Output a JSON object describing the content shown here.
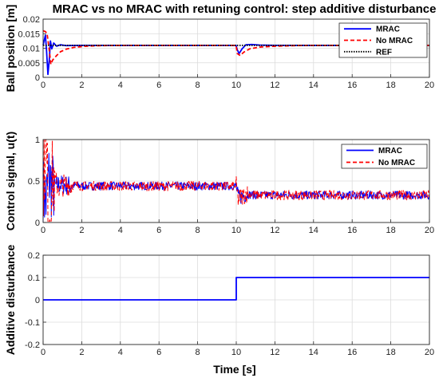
{
  "chart_data": [
    {
      "type": "line",
      "title": "MRAC vs no MRAC with retuning control: step additive disturbance",
      "xlabel": "",
      "ylabel": "Ball position [m]",
      "xlim": [
        0,
        20
      ],
      "ylim": [
        0,
        0.02
      ],
      "xticks": [
        "0",
        "2",
        "4",
        "6",
        "8",
        "10",
        "12",
        "14",
        "16",
        "18",
        "20"
      ],
      "yticks": [
        "0",
        "0.005",
        "0.01",
        "0.015",
        "0.02"
      ],
      "grid": true,
      "legend": "top-right",
      "series": [
        {
          "name": "MRAC",
          "color": "#0000ff",
          "style": "solid",
          "x": [
            0,
            0.12,
            0.18,
            0.25,
            0.32,
            0.38,
            0.45,
            0.55,
            0.7,
            0.9,
            1.2,
            2,
            4,
            6,
            8,
            9.99,
            10.05,
            10.15,
            10.3,
            10.5,
            10.8,
            11.2,
            12,
            14,
            16,
            18,
            20
          ],
          "y": [
            0.011,
            0.0145,
            0.009,
            0.001,
            0.006,
            0.0125,
            0.0098,
            0.0118,
            0.0107,
            0.0112,
            0.0109,
            0.011,
            0.011,
            0.011,
            0.011,
            0.011,
            0.0095,
            0.0082,
            0.0098,
            0.0112,
            0.0113,
            0.0111,
            0.011,
            0.011,
            0.011,
            0.011,
            0.011
          ]
        },
        {
          "name": "No MRAC",
          "color": "#ff0000",
          "style": "dashed",
          "x": [
            0,
            0.1,
            0.2,
            0.3,
            0.4,
            0.5,
            0.7,
            0.9,
            1.2,
            1.6,
            2.2,
            3,
            4,
            6,
            8,
            9.99,
            10.05,
            10.2,
            10.4,
            10.7,
            11.2,
            12,
            13,
            14,
            16,
            18,
            20
          ],
          "y": [
            0.016,
            0.0158,
            0.0152,
            0.0105,
            0.0045,
            0.006,
            0.0075,
            0.0088,
            0.0097,
            0.0103,
            0.0107,
            0.0109,
            0.011,
            0.011,
            0.011,
            0.011,
            0.0082,
            0.0075,
            0.0087,
            0.0098,
            0.0104,
            0.0107,
            0.0109,
            0.011,
            0.011,
            0.011,
            0.011
          ]
        },
        {
          "name": "REF",
          "color": "#000000",
          "style": "dotted",
          "x": [
            0,
            20
          ],
          "y": [
            0.011,
            0.011
          ]
        }
      ]
    },
    {
      "type": "line",
      "title": "",
      "xlabel": "",
      "ylabel": "Control signal, u(t)",
      "xlim": [
        0,
        20
      ],
      "ylim": [
        0,
        1
      ],
      "xticks": [
        "0",
        "2",
        "4",
        "6",
        "8",
        "10",
        "12",
        "14",
        "16",
        "18",
        "20"
      ],
      "yticks": [
        "0",
        "0.5",
        "1"
      ],
      "grid": true,
      "legend": "top-right",
      "series": [
        {
          "name": "MRAC",
          "color": "#0000ff",
          "style": "solid",
          "x": [
            0,
            0.15,
            0.3,
            0.5,
            0.8,
            1.2,
            2,
            10,
            10.1,
            10.5,
            11,
            20
          ],
          "y": [
            0.4,
            0.25,
            0.55,
            0.42,
            0.46,
            0.45,
            0.44,
            0.44,
            0.3,
            0.34,
            0.33,
            0.33
          ]
        },
        {
          "name": "No MRAC",
          "color": "#ff0000",
          "style": "dashed",
          "x": [
            0,
            0.15,
            0.3,
            0.5,
            0.8,
            1.2,
            2,
            10,
            10.1,
            10.5,
            11,
            20
          ],
          "y": [
            0.5,
            0.9,
            0.1,
            0.55,
            0.42,
            0.46,
            0.44,
            0.44,
            0.28,
            0.35,
            0.33,
            0.33
          ]
        }
      ]
    },
    {
      "type": "line",
      "title": "",
      "xlabel": "Time [s]",
      "ylabel": "Additive disturbance",
      "xlim": [
        0,
        20
      ],
      "ylim": [
        -0.2,
        0.2
      ],
      "xticks": [
        "0",
        "2",
        "4",
        "6",
        "8",
        "10",
        "12",
        "14",
        "16",
        "18",
        "20"
      ],
      "yticks": [
        "-0.2",
        "-0.1",
        "0",
        "0.1",
        "0.2"
      ],
      "grid": true,
      "series": [
        {
          "name": "",
          "color": "#0000ff",
          "style": "solid",
          "x": [
            0,
            10,
            10,
            20
          ],
          "y": [
            0,
            0,
            0.1,
            0.1
          ]
        }
      ]
    }
  ]
}
